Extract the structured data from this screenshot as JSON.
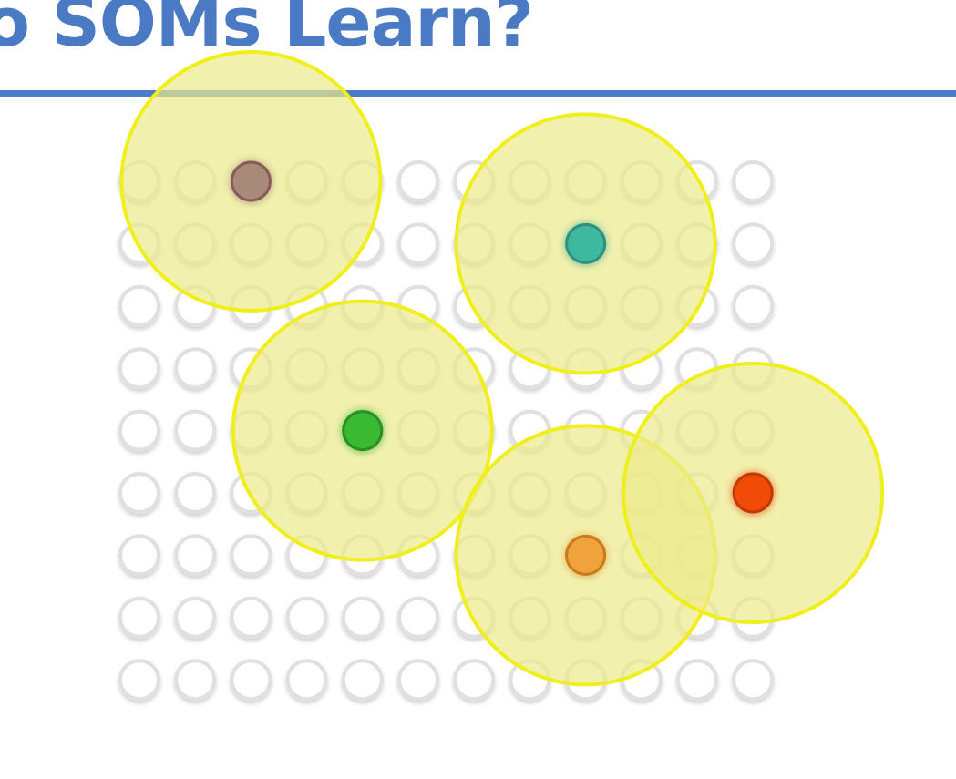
{
  "slide": {
    "title": "o SOMs Learn?"
  },
  "colors": {
    "title": "#4b7ac5",
    "rule": "#4a7cc7",
    "node_stroke": "#e2dfe0",
    "neighborhood_fill": "#ecea8a",
    "neighborhood_stroke": "#f0ef1e"
  },
  "grid": {
    "rows": 9,
    "cols": 12
  },
  "neighborhoods": [
    {
      "name": "neighborhood-brown",
      "row": 0,
      "col": 2
    },
    {
      "name": "neighborhood-teal",
      "row": 1,
      "col": 8
    },
    {
      "name": "neighborhood-green",
      "row": 4,
      "col": 4
    },
    {
      "name": "neighborhood-orange",
      "row": 6,
      "col": 8
    },
    {
      "name": "neighborhood-red",
      "row": 5,
      "col": 11
    }
  ],
  "bmus": [
    {
      "name": "bmu-brown-node",
      "row": 0,
      "col": 2,
      "color": "#a78a7a",
      "stroke": "#8a5a5a"
    },
    {
      "name": "bmu-teal-node",
      "row": 1,
      "col": 8,
      "color": "#3fb8a0",
      "stroke": "#2f8f80"
    },
    {
      "name": "bmu-green-node",
      "row": 4,
      "col": 4,
      "color": "#3aba32",
      "stroke": "#2a8f24"
    },
    {
      "name": "bmu-orange-node",
      "row": 6,
      "col": 8,
      "color": "#f0a23c",
      "stroke": "#c87a1e"
    },
    {
      "name": "bmu-red-node",
      "row": 5,
      "col": 11,
      "color": "#f24b08",
      "stroke": "#c03a05"
    }
  ]
}
